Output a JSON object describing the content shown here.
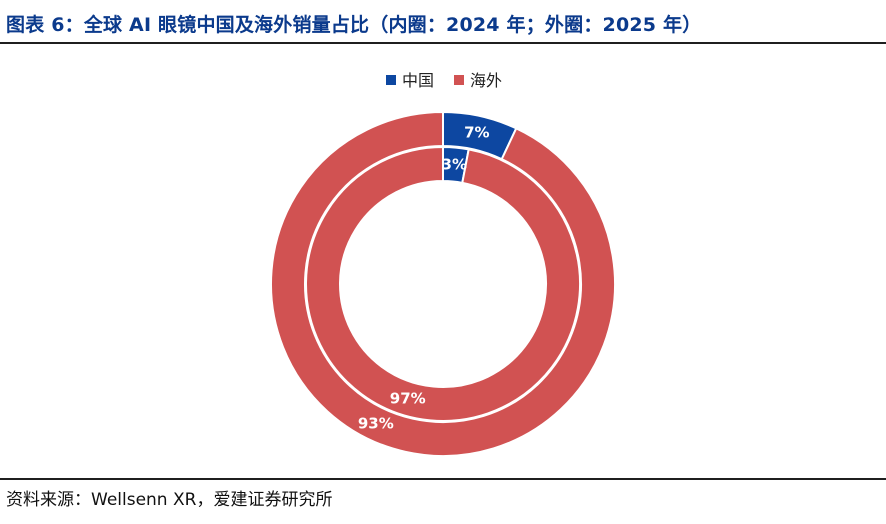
{
  "header": {
    "title": "图表 6：全球 AI 眼镜中国及海外销量占比（内圈：2024 年；外圈：2025 年）"
  },
  "footer": {
    "source": "资料来源：Wellsenn XR，爱建证券研究所"
  },
  "colors": {
    "china": "#0d47a1",
    "overseas": "#d15252",
    "title": "#0b3a8c"
  },
  "chart_data": {
    "type": "pie",
    "subtype": "nested-donut",
    "title": "全球 AI 眼镜中国及海外销量占比（内圈：2024 年；外圈：2025 年）",
    "legend": {
      "position": "top",
      "entries": [
        "中国",
        "海外"
      ]
    },
    "categories": [
      "中国",
      "海外"
    ],
    "series": [
      {
        "name": "2024 年",
        "ring": "inner",
        "values": [
          3,
          97
        ],
        "labels": [
          "3%",
          "97%"
        ]
      },
      {
        "name": "2025 年",
        "ring": "outer",
        "values": [
          7,
          93
        ],
        "labels": [
          "7%",
          "93%"
        ]
      }
    ]
  }
}
